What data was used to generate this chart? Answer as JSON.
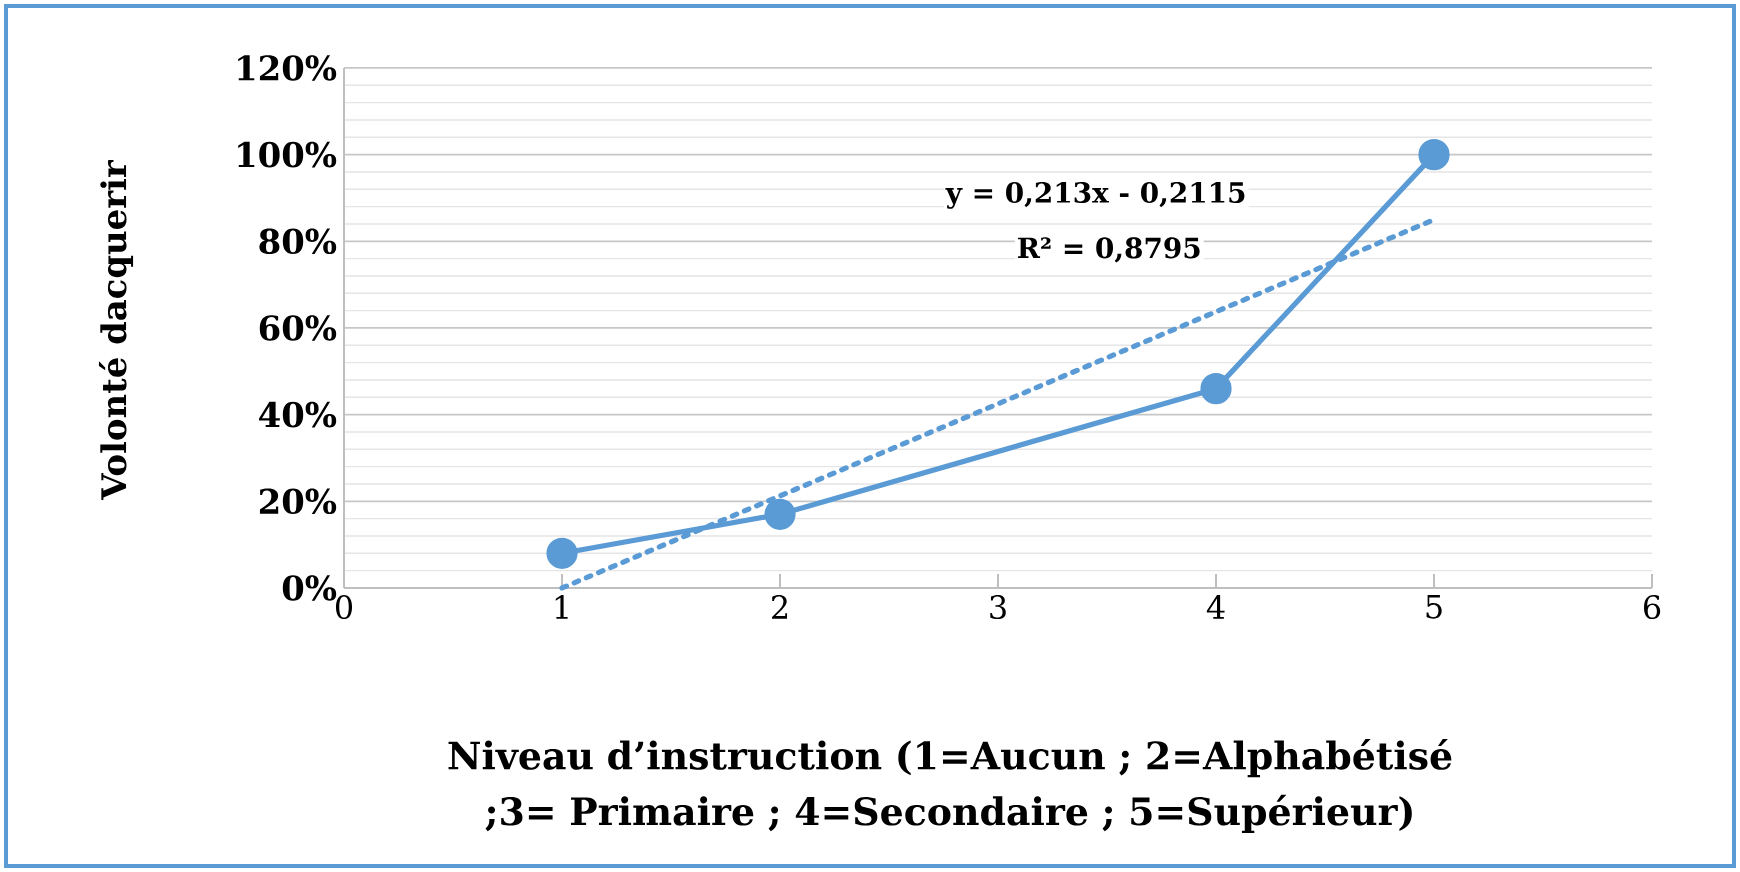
{
  "chart_data": {
    "type": "line",
    "xlabel": "Niveau d’instruction  (1=Aucun ; 2=Alphabétisé ;3= Primaire ; 4=Secondaire ; 5=Supérieur)",
    "ylabel": "Volonté dacquerir",
    "x": [
      1,
      2,
      4,
      5
    ],
    "series": [
      {
        "color": "#5b9bd5",
        "values": [
          8,
          17,
          46,
          100
        ]
      },
      {
        "type": "line",
        "x": [
          1,
          5
        ],
        "color": "#5b9bd5",
        "values": [
          0,
          85
        ],
        "marker": "none",
        "line_style": "dotted"
      }
    ],
    "xlim": [
      0,
      6
    ],
    "xticks": [
      0,
      1,
      2,
      3,
      4,
      5,
      6
    ],
    "ylim": [
      0,
      120
    ],
    "yticks": [
      {
        "value": 0,
        "label": "0%"
      },
      {
        "value": 20,
        "label": "20%"
      },
      {
        "value": 40,
        "label": "40%"
      },
      {
        "value": 60,
        "label": "60%"
      },
      {
        "value": 80,
        "label": "80%"
      },
      {
        "value": 100,
        "label": "100%"
      },
      {
        "value": 120,
        "label": "120%"
      }
    ],
    "annotations": [
      "y = 0,213x - 0,2115",
      "R² = 0,8795"
    ],
    "grid": "y",
    "marker": "circle",
    "line_style": "solid"
  }
}
